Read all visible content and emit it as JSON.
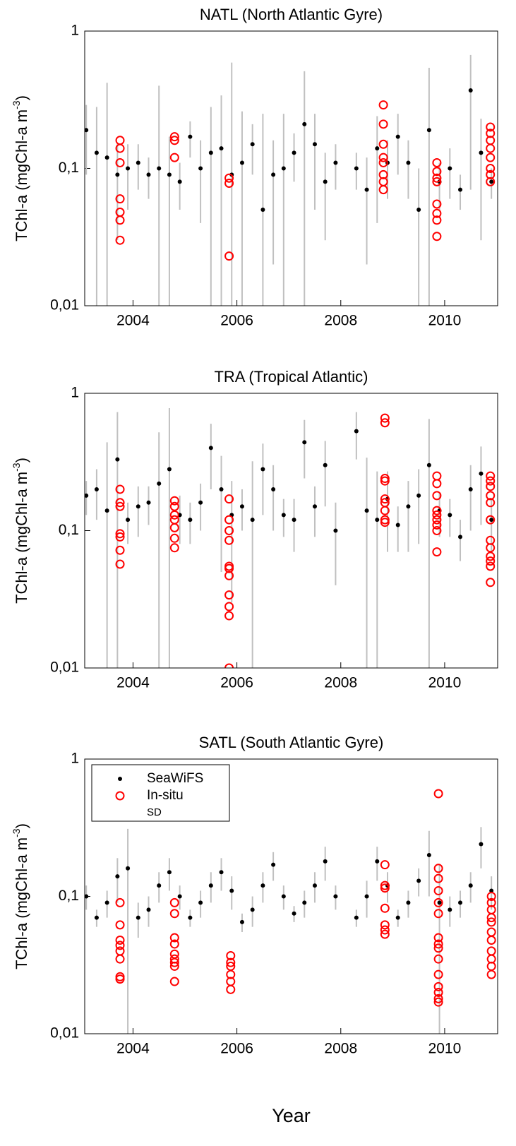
{
  "chart_data": [
    {
      "type": "scatter",
      "title": "NATL (North Atlantic Gyre)",
      "ylabel": [
        "TChl-a (mgChl-a m",
        "-3",
        ")"
      ],
      "log": true,
      "xlim": [
        2003.07,
        2011.02
      ],
      "xticks": [
        2004,
        2006,
        2008,
        2010
      ],
      "ylim": [
        0.01,
        1
      ],
      "yticks": [
        {
          "value": 0.01,
          "label": "0,01"
        },
        {
          "value": 0.1,
          "label": "0,1"
        },
        1
      ],
      "series": [
        {
          "color": "#000000",
          "error_color": "#c0c0c0",
          "x": [
            2003.1,
            2003.3,
            2003.5,
            2003.7,
            2003.9,
            2004.1,
            2004.3,
            2004.5,
            2004.7,
            2004.9,
            2005.1,
            2005.3,
            2005.5,
            2005.7,
            2005.9,
            2006.1,
            2006.3,
            2006.5,
            2006.7,
            2006.9,
            2007.1,
            2007.3,
            2007.5,
            2007.7,
            2007.9,
            2008.3,
            2008.5,
            2008.7,
            2008.9,
            2009.1,
            2009.3,
            2009.5,
            2009.7,
            2009.9,
            2010.1,
            2010.3,
            2010.5,
            2010.7,
            2010.9
          ],
          "values": [
            0.19,
            0.13,
            0.12,
            0.09,
            0.1,
            0.11,
            0.09,
            0.1,
            0.09,
            0.08,
            0.17,
            0.1,
            0.13,
            0.14,
            0.09,
            0.11,
            0.15,
            0.05,
            0.09,
            0.1,
            0.13,
            0.21,
            0.15,
            0.08,
            0.11,
            0.1,
            0.07,
            0.14,
            0.11,
            0.17,
            0.11,
            0.05,
            0.19,
            0.08,
            0.1,
            0.07,
            0.37,
            0.13,
            0.08
          ],
          "sd": [
            0.1,
            0.15,
            0.3,
            0.06,
            0.05,
            0.04,
            0.03,
            0.3,
            0.08,
            0.03,
            0.05,
            0.06,
            0.15,
            0.2,
            0.5,
            0.15,
            0.06,
            0.2,
            0.07,
            0.15,
            0.05,
            0.3,
            0.1,
            0.05,
            0.04,
            0.03,
            0.05,
            0.1,
            0.05,
            0.08,
            0.05,
            0.05,
            0.35,
            0.03,
            0.04,
            0.02,
            0.3,
            0.1,
            0.02
          ]
        },
        {
          "color": "#ff0000",
          "x": [
            2003.75,
            2003.75,
            2003.75,
            2003.75,
            2003.75,
            2003.75,
            2003.75,
            2004.8,
            2004.8,
            2004.8,
            2005.85,
            2005.85,
            2005.85,
            2008.82,
            2008.82,
            2008.82,
            2008.82,
            2008.82,
            2008.82,
            2008.82,
            2008.82,
            2009.85,
            2009.85,
            2009.85,
            2009.85,
            2009.85,
            2009.85,
            2009.85,
            2009.85,
            2010.88,
            2010.88,
            2010.88,
            2010.88,
            2010.88,
            2010.88,
            2010.88,
            2010.88
          ],
          "values": [
            0.16,
            0.14,
            0.11,
            0.06,
            0.048,
            0.042,
            0.03,
            0.17,
            0.16,
            0.12,
            0.085,
            0.078,
            0.023,
            0.29,
            0.21,
            0.15,
            0.12,
            0.11,
            0.09,
            0.08,
            0.07,
            0.11,
            0.095,
            0.085,
            0.08,
            0.055,
            0.047,
            0.042,
            0.032,
            0.2,
            0.18,
            0.16,
            0.14,
            0.12,
            0.1,
            0.09,
            0.08
          ]
        }
      ]
    },
    {
      "type": "scatter",
      "title": "TRA (Tropical Atlantic)",
      "ylabel": [
        "TChl-a (mgChl-a m",
        "-3",
        ")"
      ],
      "log": true,
      "xlim": [
        2003.07,
        2011.02
      ],
      "xticks": [
        2004,
        2006,
        2008,
        2010
      ],
      "ylim": [
        0.01,
        1
      ],
      "yticks": [
        {
          "value": 0.01,
          "label": "0,01"
        },
        {
          "value": 0.1,
          "label": "0,1"
        },
        1
      ],
      "series": [
        {
          "color": "#000000",
          "error_color": "#c0c0c0",
          "x": [
            2003.1,
            2003.3,
            2003.5,
            2003.7,
            2003.9,
            2004.1,
            2004.3,
            2004.5,
            2004.7,
            2004.9,
            2005.1,
            2005.3,
            2005.5,
            2005.7,
            2005.9,
            2006.1,
            2006.3,
            2006.5,
            2006.7,
            2006.9,
            2007.1,
            2007.3,
            2007.5,
            2007.7,
            2007.9,
            2008.3,
            2008.5,
            2008.7,
            2008.9,
            2009.1,
            2009.3,
            2009.5,
            2009.7,
            2009.9,
            2010.1,
            2010.3,
            2010.5,
            2010.7,
            2010.9
          ],
          "values": [
            0.18,
            0.2,
            0.14,
            0.33,
            0.12,
            0.15,
            0.16,
            0.22,
            0.28,
            0.13,
            0.12,
            0.16,
            0.4,
            0.2,
            0.13,
            0.15,
            0.12,
            0.28,
            0.2,
            0.13,
            0.12,
            0.44,
            0.15,
            0.3,
            0.1,
            0.53,
            0.14,
            0.12,
            0.17,
            0.11,
            0.15,
            0.18,
            0.3,
            0.14,
            0.13,
            0.09,
            0.2,
            0.26,
            0.12
          ],
          "sd": [
            0.05,
            0.08,
            0.3,
            0.4,
            0.04,
            0.06,
            0.05,
            0.3,
            0.5,
            0.05,
            0.04,
            0.06,
            0.2,
            0.15,
            0.1,
            0.05,
            0.2,
            0.15,
            0.1,
            0.04,
            0.05,
            0.2,
            0.06,
            0.15,
            0.06,
            0.2,
            0.2,
            0.15,
            0.1,
            0.04,
            0.08,
            0.1,
            0.35,
            0.05,
            0.04,
            0.03,
            0.1,
            0.15,
            0.05
          ]
        },
        {
          "color": "#ff0000",
          "x": [
            2003.75,
            2003.75,
            2003.75,
            2003.75,
            2003.75,
            2003.75,
            2003.75,
            2004.8,
            2004.8,
            2004.8,
            2004.8,
            2004.8,
            2004.8,
            2004.8,
            2005.85,
            2005.85,
            2005.85,
            2005.85,
            2005.85,
            2005.85,
            2005.85,
            2005.85,
            2005.85,
            2005.85,
            2005.85,
            2008.85,
            2008.85,
            2008.85,
            2008.85,
            2008.85,
            2008.85,
            2008.85,
            2008.85,
            2008.85,
            2009.85,
            2009.85,
            2009.85,
            2009.85,
            2009.85,
            2009.85,
            2009.85,
            2009.85,
            2009.85,
            2010.88,
            2010.88,
            2010.88,
            2010.88,
            2010.88,
            2010.88,
            2010.88,
            2010.88,
            2010.88,
            2010.88,
            2010.88,
            2010.88
          ],
          "values": [
            0.2,
            0.16,
            0.15,
            0.095,
            0.09,
            0.072,
            0.057,
            0.165,
            0.15,
            0.13,
            0.12,
            0.105,
            0.088,
            0.075,
            0.17,
            0.12,
            0.1,
            0.085,
            0.055,
            0.053,
            0.047,
            0.034,
            0.028,
            0.024,
            0.01,
            0.66,
            0.61,
            0.24,
            0.23,
            0.17,
            0.16,
            0.14,
            0.12,
            0.115,
            0.25,
            0.22,
            0.18,
            0.14,
            0.13,
            0.12,
            0.11,
            0.1,
            0.07,
            0.25,
            0.23,
            0.21,
            0.18,
            0.16,
            0.12,
            0.085,
            0.075,
            0.065,
            0.06,
            0.055,
            0.042
          ]
        }
      ]
    },
    {
      "type": "scatter",
      "title": "SATL (South Atlantic Gyre)",
      "ylabel": [
        "TChl-a (mgChl-a m",
        "-3",
        ")"
      ],
      "xlabel": "Year",
      "log": true,
      "legend": "upper left",
      "xlim": [
        2003.07,
        2011.02
      ],
      "xticks": [
        2004,
        2006,
        2008,
        2010
      ],
      "ylim": [
        0.01,
        1
      ],
      "yticks": [
        {
          "value": 0.01,
          "label": "0,01"
        },
        {
          "value": 0.1,
          "label": "0,1"
        },
        1
      ],
      "series": [
        {
          "name": "SeaWiFS",
          "error_name": "SD",
          "color": "#000000",
          "error_color": "#c0c0c0",
          "x": [
            2003.1,
            2003.3,
            2003.5,
            2003.7,
            2003.9,
            2004.1,
            2004.3,
            2004.5,
            2004.7,
            2004.9,
            2005.1,
            2005.3,
            2005.5,
            2005.7,
            2005.9,
            2006.1,
            2006.3,
            2006.5,
            2006.7,
            2006.9,
            2007.1,
            2007.3,
            2007.5,
            2007.7,
            2007.9,
            2008.3,
            2008.5,
            2008.7,
            2008.9,
            2009.1,
            2009.3,
            2009.5,
            2009.7,
            2009.9,
            2010.1,
            2010.3,
            2010.5,
            2010.7,
            2010.9
          ],
          "values": [
            0.1,
            0.07,
            0.09,
            0.14,
            0.16,
            0.07,
            0.08,
            0.12,
            0.15,
            0.1,
            0.07,
            0.09,
            0.12,
            0.15,
            0.11,
            0.065,
            0.08,
            0.12,
            0.17,
            0.1,
            0.075,
            0.09,
            0.12,
            0.18,
            0.1,
            0.07,
            0.1,
            0.18,
            0.12,
            0.07,
            0.09,
            0.13,
            0.2,
            0.09,
            0.08,
            0.09,
            0.12,
            0.24,
            0.11
          ],
          "sd": [
            0.02,
            0.01,
            0.02,
            0.05,
            0.15,
            0.02,
            0.02,
            0.03,
            0.04,
            0.02,
            0.01,
            0.02,
            0.03,
            0.04,
            0.03,
            0.01,
            0.02,
            0.03,
            0.04,
            0.02,
            0.01,
            0.02,
            0.03,
            0.05,
            0.02,
            0.01,
            0.03,
            0.05,
            0.03,
            0.01,
            0.02,
            0.03,
            0.1,
            0.08,
            0.02,
            0.02,
            0.03,
            0.08,
            0.03
          ]
        },
        {
          "name": "In-situ",
          "color": "#ff0000",
          "x": [
            2003.75,
            2003.75,
            2003.75,
            2003.75,
            2003.75,
            2003.75,
            2003.75,
            2003.75,
            2004.8,
            2004.8,
            2004.8,
            2004.8,
            2004.8,
            2004.8,
            2004.8,
            2004.8,
            2004.8,
            2005.88,
            2005.88,
            2005.88,
            2005.88,
            2005.88,
            2005.88,
            2008.85,
            2008.85,
            2008.85,
            2008.85,
            2008.85,
            2008.85,
            2008.85,
            2009.88,
            2009.88,
            2009.88,
            2009.88,
            2009.88,
            2009.88,
            2009.88,
            2009.88,
            2009.88,
            2009.88,
            2009.88,
            2009.88,
            2009.88,
            2009.88,
            2009.88,
            2010.9,
            2010.9,
            2010.9,
            2010.9,
            2010.9,
            2010.9,
            2010.9,
            2010.9,
            2010.9,
            2010.9,
            2010.9
          ],
          "values": [
            0.09,
            0.062,
            0.048,
            0.044,
            0.04,
            0.035,
            0.026,
            0.025,
            0.09,
            0.075,
            0.05,
            0.045,
            0.038,
            0.035,
            0.033,
            0.031,
            0.024,
            0.037,
            0.033,
            0.031,
            0.027,
            0.024,
            0.021,
            0.17,
            0.12,
            0.115,
            0.082,
            0.062,
            0.057,
            0.053,
            0.56,
            0.16,
            0.135,
            0.11,
            0.09,
            0.075,
            0.05,
            0.045,
            0.042,
            0.035,
            0.027,
            0.022,
            0.02,
            0.018,
            0.017,
            0.1,
            0.09,
            0.08,
            0.07,
            0.065,
            0.055,
            0.048,
            0.04,
            0.035,
            0.031,
            0.027
          ]
        }
      ]
    }
  ]
}
